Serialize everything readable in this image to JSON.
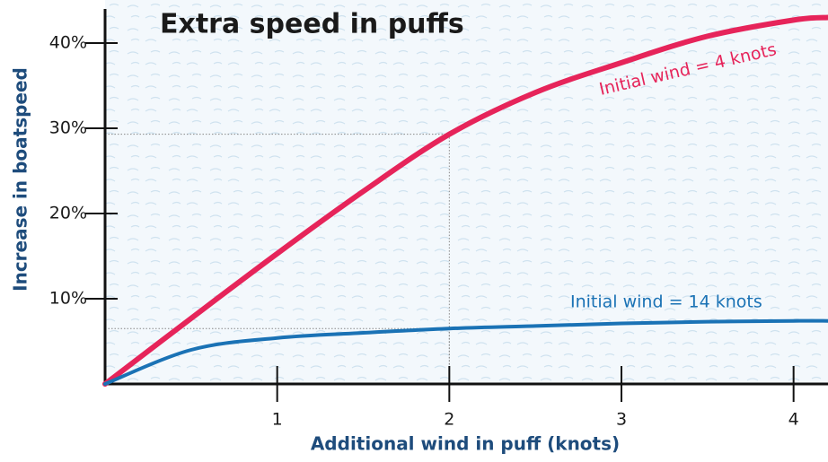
{
  "chart_data": {
    "type": "line",
    "title": "Extra speed in puffs",
    "x_label": "Additional wind in puff (knots)",
    "y_label": "Increase in boatspeed",
    "x": [
      0,
      0.5,
      1,
      1.5,
      2,
      2.5,
      3,
      3.5,
      4,
      4.2
    ],
    "series": [
      {
        "name": "Initial wind = 4 knots",
        "color": "#e6245a",
        "values": [
          0,
          7.7,
          15.3,
          22.6,
          29.3,
          34.2,
          37.7,
          40.8,
          42.7,
          43
        ]
      },
      {
        "name": "Initial wind = 14 knots",
        "color": "#1a72b5",
        "values": [
          0,
          4.0,
          5.4,
          6.0,
          6.5,
          6.8,
          7.1,
          7.3,
          7.4,
          7.4
        ]
      }
    ],
    "xlim": [
      0,
      4.2
    ],
    "ylim": [
      0,
      44
    ],
    "xticks": [
      1,
      2,
      3,
      4
    ],
    "yticks": [
      {
        "value": 10,
        "label": "10%"
      },
      {
        "value": 20,
        "label": "20%"
      },
      {
        "value": 30,
        "label": "30%"
      },
      {
        "value": 40,
        "label": "40%"
      }
    ],
    "reference_lines": [
      {
        "x": 2,
        "y": 29.3
      },
      {
        "x": 2,
        "y": 6.5
      }
    ]
  }
}
